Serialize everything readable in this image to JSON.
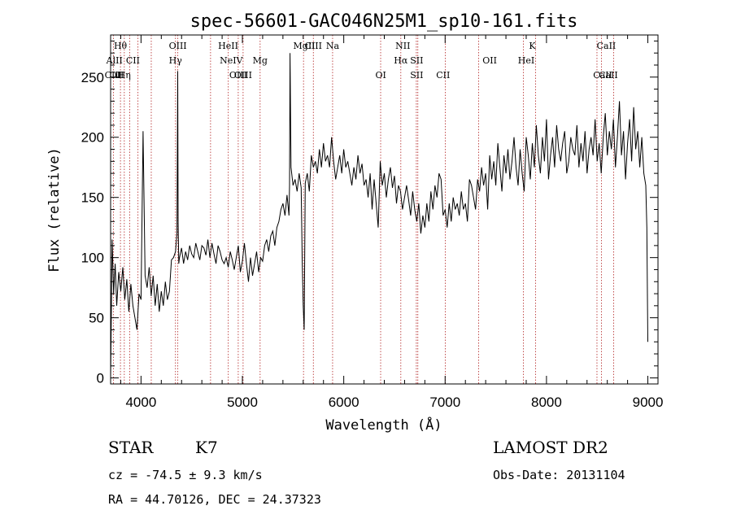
{
  "chart_data": {
    "type": "line",
    "title": "spec-56601-GAC046N25M1_sp10-161.fits",
    "xlabel": "Wavelength (Å)",
    "ylabel": "Flux (relative)",
    "xlim": [
      3700,
      9100
    ],
    "ylim": [
      -5,
      285
    ],
    "x_ticks": [
      4000,
      5000,
      6000,
      7000,
      8000,
      9000
    ],
    "x_tick_labels": [
      "4000",
      "5000",
      "6000",
      "7000",
      "8000",
      "9000"
    ],
    "y_ticks": [
      0,
      50,
      100,
      150,
      200,
      250
    ],
    "y_tick_labels": [
      "0",
      "50",
      "100",
      "150",
      "200",
      "250"
    ],
    "grid": false,
    "series": [
      {
        "x": [
          3700,
          3715,
          3730,
          3745,
          3760,
          3780,
          3800,
          3820,
          3840,
          3860,
          3880,
          3900,
          3920,
          3940,
          3960,
          3980,
          4000,
          4020,
          4040,
          4060,
          4080,
          4100,
          4120,
          4140,
          4160,
          4180,
          4200,
          4220,
          4240,
          4260,
          4280,
          4300,
          4320,
          4340,
          4355,
          4362,
          4366,
          4372,
          4380,
          4400,
          4420,
          4440,
          4460,
          4480,
          4500,
          4520,
          4540,
          4560,
          4580,
          4600,
          4620,
          4640,
          4660,
          4680,
          4700,
          4720,
          4740,
          4760,
          4780,
          4800,
          4820,
          4840,
          4860,
          4880,
          4900,
          4920,
          4940,
          4960,
          4980,
          5000,
          5020,
          5040,
          5060,
          5080,
          5100,
          5120,
          5140,
          5160,
          5180,
          5200,
          5220,
          5240,
          5260,
          5280,
          5300,
          5320,
          5340,
          5360,
          5380,
          5400,
          5420,
          5440,
          5460,
          5465,
          5470,
          5480,
          5500,
          5520,
          5540,
          5560,
          5580,
          5590,
          5600,
          5610,
          5620,
          5640,
          5660,
          5680,
          5700,
          5720,
          5740,
          5760,
          5780,
          5800,
          5820,
          5840,
          5860,
          5880,
          5900,
          5920,
          5940,
          5960,
          5980,
          6000,
          6020,
          6040,
          6060,
          6080,
          6100,
          6120,
          6140,
          6160,
          6180,
          6200,
          6220,
          6240,
          6260,
          6280,
          6300,
          6320,
          6340,
          6360,
          6380,
          6400,
          6420,
          6440,
          6460,
          6480,
          6500,
          6520,
          6540,
          6560,
          6580,
          6600,
          6620,
          6640,
          6660,
          6680,
          6700,
          6720,
          6740,
          6760,
          6780,
          6800,
          6820,
          6840,
          6860,
          6880,
          6900,
          6920,
          6940,
          6960,
          6980,
          7000,
          7020,
          7040,
          7060,
          7080,
          7100,
          7120,
          7140,
          7160,
          7180,
          7200,
          7220,
          7240,
          7260,
          7280,
          7300,
          7320,
          7340,
          7360,
          7380,
          7400,
          7420,
          7440,
          7460,
          7480,
          7500,
          7520,
          7540,
          7560,
          7580,
          7600,
          7620,
          7640,
          7660,
          7680,
          7700,
          7720,
          7740,
          7760,
          7780,
          7800,
          7820,
          7840,
          7860,
          7880,
          7900,
          7920,
          7940,
          7960,
          7980,
          8000,
          8020,
          8040,
          8060,
          8080,
          8100,
          8120,
          8140,
          8160,
          8180,
          8200,
          8220,
          8240,
          8260,
          8280,
          8300,
          8320,
          8340,
          8360,
          8380,
          8400,
          8420,
          8440,
          8460,
          8480,
          8500,
          8520,
          8540,
          8560,
          8580,
          8600,
          8620,
          8640,
          8660,
          8680,
          8700,
          8720,
          8740,
          8760,
          8780,
          8800,
          8820,
          8840,
          8860,
          8880,
          8900,
          8920,
          8940,
          8960,
          8980,
          8990,
          9000
        ],
        "y": [
          0,
          115,
          70,
          95,
          60,
          88,
          72,
          92,
          65,
          82,
          55,
          78,
          60,
          50,
          40,
          70,
          65,
          205,
          85,
          75,
          92,
          68,
          85,
          60,
          78,
          55,
          72,
          60,
          80,
          65,
          72,
          98,
          100,
          105,
          120,
          255,
          130,
          95,
          100,
          108,
          95,
          105,
          98,
          110,
          103,
          100,
          112,
          105,
          98,
          110,
          108,
          102,
          115,
          100,
          112,
          103,
          95,
          110,
          105,
          98,
          95,
          100,
          92,
          105,
          98,
          90,
          100,
          110,
          88,
          97,
          112,
          95,
          80,
          100,
          85,
          95,
          105,
          88,
          100,
          97,
          110,
          115,
          105,
          118,
          122,
          110,
          125,
          130,
          140,
          145,
          135,
          152,
          135,
          160,
          270,
          175,
          160,
          165,
          155,
          170,
          158,
          100,
          60,
          40,
          162,
          170,
          155,
          185,
          175,
          180,
          170,
          190,
          175,
          195,
          180,
          185,
          175,
          200,
          180,
          165,
          175,
          185,
          170,
          190,
          175,
          180,
          170,
          160,
          175,
          165,
          185,
          170,
          178,
          160,
          165,
          150,
          170,
          140,
          165,
          145,
          125,
          180,
          160,
          170,
          150,
          165,
          175,
          158,
          168,
          145,
          160,
          155,
          140,
          150,
          160,
          148,
          135,
          155,
          140,
          130,
          145,
          120,
          135,
          125,
          145,
          130,
          155,
          140,
          160,
          150,
          170,
          165,
          135,
          140,
          125,
          145,
          130,
          150,
          140,
          145,
          135,
          155,
          140,
          145,
          130,
          165,
          160,
          150,
          140,
          165,
          155,
          175,
          160,
          170,
          140,
          185,
          165,
          180,
          160,
          195,
          175,
          155,
          185,
          170,
          190,
          165,
          180,
          200,
          175,
          160,
          190,
          170,
          155,
          200,
          185,
          165,
          195,
          175,
          210,
          185,
          170,
          200,
          180,
          215,
          165,
          185,
          200,
          175,
          210,
          190,
          180,
          195,
          205,
          170,
          180,
          200,
          190,
          185,
          210,
          175,
          195,
          180,
          205,
          170,
          190,
          200,
          185,
          215,
          180,
          195,
          170,
          200,
          220,
          185,
          205,
          190,
          215,
          175,
          200,
          230,
          185,
          205,
          165,
          195,
          215,
          180,
          225,
          190,
          205,
          175,
          200,
          170,
          160,
          125,
          30
        ]
      }
    ],
    "annotations": [
      {
        "label": "Hθ",
        "x": 3797,
        "row": 1
      },
      {
        "label": "AlII",
        "x": 3738,
        "row": 2
      },
      {
        "label": "CIII",
        "x": 3727,
        "row": 3
      },
      {
        "label": "Hη",
        "x": 3835,
        "row": 3
      },
      {
        "label": "OII",
        "x": 3760,
        "row": 3
      },
      {
        "label": "CII",
        "x": 3920,
        "row": 2
      },
      {
        "label": "OIII",
        "x": 4363,
        "row": 1
      },
      {
        "label": "Hγ",
        "x": 4340,
        "row": 2
      },
      {
        "label": "HeII",
        "x": 4860,
        "row": 1
      },
      {
        "label": "NeIV",
        "x": 4890,
        "row": 2
      },
      {
        "label": "OIII",
        "x": 4959,
        "row": 3
      },
      {
        "label": "OIII",
        "x": 5007,
        "row": 3
      },
      {
        "label": "Mg",
        "x": 5175,
        "row": 2
      },
      {
        "label": "MgII",
        "x": 5610,
        "row": 1
      },
      {
        "label": "CIII",
        "x": 5700,
        "row": 1
      },
      {
        "label": "Na",
        "x": 5890,
        "row": 1
      },
      {
        "label": "NII",
        "x": 6583,
        "row": 1
      },
      {
        "label": "Hα",
        "x": 6563,
        "row": 2
      },
      {
        "label": "SII",
        "x": 6720,
        "row": 2
      },
      {
        "label": "SII",
        "x": 6720,
        "row": 3
      },
      {
        "label": "OI",
        "x": 6365,
        "row": 3
      },
      {
        "label": "CII",
        "x": 6980,
        "row": 3
      },
      {
        "label": "OII",
        "x": 7440,
        "row": 2
      },
      {
        "label": "K",
        "x": 7860,
        "row": 1
      },
      {
        "label": "HeI",
        "x": 7800,
        "row": 2
      },
      {
        "label": "CaII",
        "x": 8590,
        "row": 1
      },
      {
        "label": "CaII",
        "x": 8555,
        "row": 3
      },
      {
        "label": "CaII",
        "x": 8610,
        "row": 3
      }
    ],
    "reference_lines_x": [
      3727,
      3797,
      3835,
      3889,
      3970,
      4101,
      4340,
      4363,
      4686,
      4861,
      4959,
      5007,
      5175,
      5603,
      5700,
      5890,
      6364,
      6563,
      6716,
      6731,
      7002,
      7330,
      7773,
      7893,
      8498,
      8542,
      8662
    ]
  },
  "footer": {
    "object_class": "STAR",
    "subclass": "K7",
    "survey": "LAMOST DR2",
    "redshift": "cz = -74.5 ± 9.3 km/s",
    "obs_date": "Obs-Date: 20131104",
    "coords": "RA =  44.70126, DEC =  24.37323"
  }
}
